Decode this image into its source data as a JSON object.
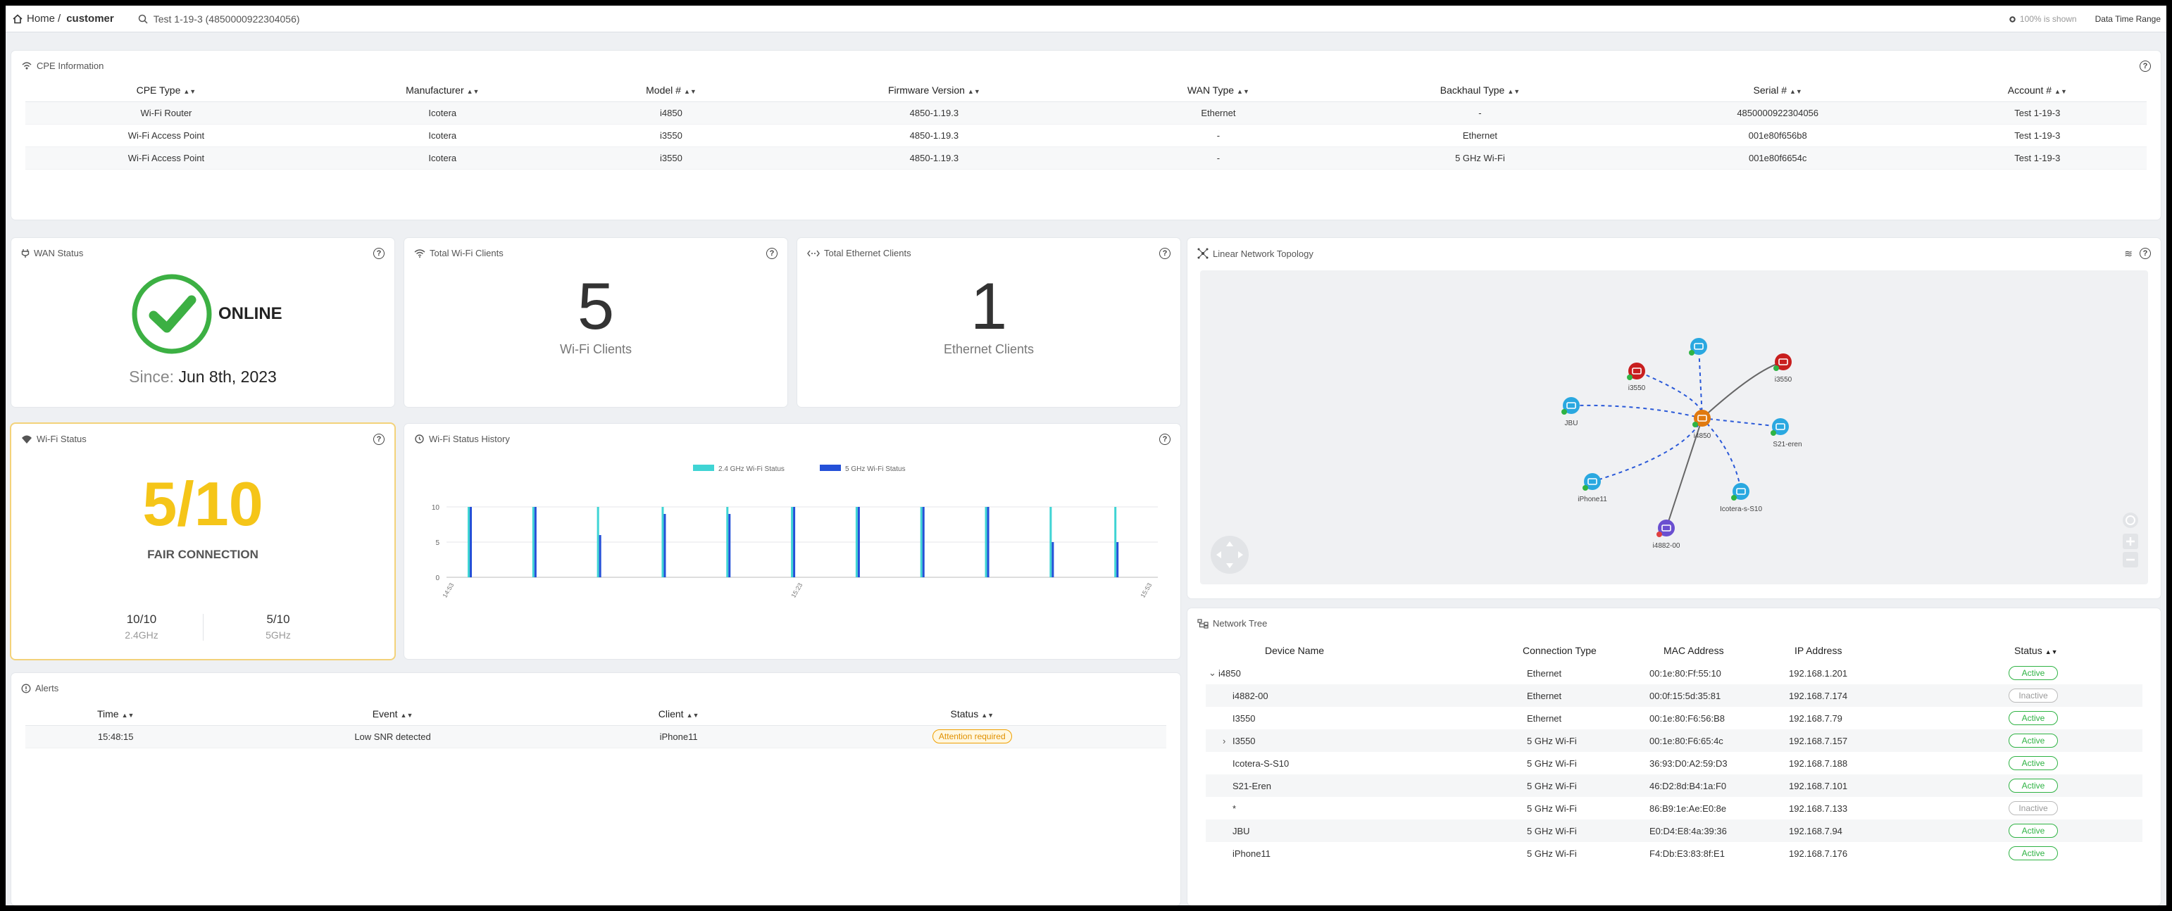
{
  "topbar": {
    "home_label": "Home",
    "separator": "/",
    "current": "customer",
    "search_value": "Test 1-19-3 (4850000922304056)",
    "zoom_text": "100% is shown",
    "datetime_label": "Data Time Range"
  },
  "cpe": {
    "title": "CPE Information",
    "columns": [
      "CPE Type",
      "Manufacturer",
      "Model #",
      "Firmware Version",
      "WAN Type",
      "Backhaul Type",
      "Serial #",
      "Account #"
    ],
    "rows": [
      [
        "Wi-Fi Router",
        "Icotera",
        "i4850",
        "4850-1.19.3",
        "Ethernet",
        "-",
        "4850000922304056",
        "Test 1-19-3"
      ],
      [
        "Wi-Fi Access Point",
        "Icotera",
        "i3550",
        "4850-1.19.3",
        "-",
        "Ethernet",
        "001e80f656b8",
        "Test 1-19-3"
      ],
      [
        "Wi-Fi Access Point",
        "Icotera",
        "i3550",
        "4850-1.19.3",
        "-",
        "5 GHz Wi-Fi",
        "001e80f6654c",
        "Test 1-19-3"
      ]
    ]
  },
  "wan": {
    "title": "WAN Status",
    "status": "ONLINE",
    "since_label": "Since:",
    "since_date": "Jun 8th, 2023",
    "status_color": "#3cb043"
  },
  "wifi_clients": {
    "title": "Total Wi-Fi Clients",
    "count": "5",
    "label": "Wi-Fi Clients"
  },
  "eth_clients": {
    "title": "Total Ethernet Clients",
    "count": "1",
    "label": "Ethernet Clients"
  },
  "wifi_status": {
    "title": "Wi-Fi Status",
    "score": "5/10",
    "rating": "FAIR CONNECTION",
    "score_color": "#f5c518",
    "band1_score": "10/10",
    "band1_label": "2.4GHz",
    "band2_score": "5/10",
    "band2_label": "5GHz"
  },
  "history": {
    "title": "Wi-Fi Status History"
  },
  "chart_data": {
    "type": "bar",
    "series": [
      {
        "name": "2.4 GHz Wi-Fi Status",
        "color": "#3fd4d4",
        "values": [
          10,
          10,
          10,
          10,
          10,
          10,
          10,
          10,
          10,
          10,
          10
        ]
      },
      {
        "name": "5 GHz Wi-Fi Status",
        "color": "#2450d8",
        "values": [
          10,
          10,
          6,
          9,
          9,
          10,
          10,
          10,
          10,
          5,
          5
        ]
      }
    ],
    "yticks": [
      "10",
      "5",
      "0"
    ],
    "ylim": [
      0,
      10
    ],
    "xticks": [
      "14:53",
      "15:23",
      "15:53"
    ],
    "legend": "top-center",
    "grid": true
  },
  "topology": {
    "title": "Linear Network Topology",
    "nodes": [
      {
        "label": "i4850",
        "icon": "router-icon",
        "color": "#e07a10"
      },
      {
        "label": "i3550",
        "icon": "access-point-icon",
        "color": "#c81e1e"
      },
      {
        "label": "",
        "icon": "device-icon",
        "color": "#2aa8e0"
      },
      {
        "label": "i3550",
        "icon": "access-point-icon",
        "color": "#c81e1e"
      },
      {
        "label": "JBU",
        "icon": "device-icon",
        "color": "#2aa8e0"
      },
      {
        "label": "S21-eren",
        "icon": "device-icon",
        "color": "#2aa8e0"
      },
      {
        "label": "iPhone11",
        "icon": "device-icon",
        "color": "#2aa8e0"
      },
      {
        "label": "Icotera-s-S10",
        "icon": "device-icon",
        "color": "#2aa8e0"
      },
      {
        "label": "i4882-00",
        "icon": "device-icon",
        "color": "#6a4fd0"
      }
    ]
  },
  "tree": {
    "title": "Network Tree",
    "columns": [
      "Device Name",
      "Connection Type",
      "MAC Address",
      "IP Address",
      "Status"
    ],
    "rows": [
      {
        "expander": "⌄",
        "name": "i4850",
        "conn": "Ethernet",
        "mac": "00:1e:80:Ff:55:10",
        "ip": "192.168.1.201",
        "status": "Active"
      },
      {
        "expander": "",
        "name": "i4882-00",
        "conn": "Ethernet",
        "mac": "00:0f:15:5d:35:81",
        "ip": "192.168.7.174",
        "status": "Inactive"
      },
      {
        "expander": "",
        "name": "I3550",
        "conn": "Ethernet",
        "mac": "00:1e:80:F6:56:B8",
        "ip": "192.168.7.79",
        "status": "Active"
      },
      {
        "expander": "›",
        "name": "I3550",
        "conn": "5 GHz Wi-Fi",
        "mac": "00:1e:80:F6:65:4c",
        "ip": "192.168.7.157",
        "status": "Active"
      },
      {
        "expander": "",
        "name": "Icotera-S-S10",
        "conn": "5 GHz Wi-Fi",
        "mac": "36:93:D0:A2:59:D3",
        "ip": "192.168.7.188",
        "status": "Active"
      },
      {
        "expander": "",
        "name": "S21-Eren",
        "conn": "5 GHz Wi-Fi",
        "mac": "46:D2:8d:B4:1a:F0",
        "ip": "192.168.7.101",
        "status": "Active"
      },
      {
        "expander": "",
        "name": "*",
        "conn": "5 GHz Wi-Fi",
        "mac": "86:B9:1e:Ae:E0:8e",
        "ip": "192.168.7.133",
        "status": "Inactive"
      },
      {
        "expander": "",
        "name": "JBU",
        "conn": "5 GHz Wi-Fi",
        "mac": "E0:D4:E8:4a:39:36",
        "ip": "192.168.7.94",
        "status": "Active"
      },
      {
        "expander": "",
        "name": "iPhone11",
        "conn": "5 GHz Wi-Fi",
        "mac": "F4:Db:E3:83:8f:E1",
        "ip": "192.168.7.176",
        "status": "Active"
      }
    ]
  },
  "alerts": {
    "title": "Alerts",
    "columns": [
      "Time",
      "Event",
      "Client",
      "Status"
    ],
    "rows": [
      {
        "time": "15:48:15",
        "event": "Low SNR detected",
        "client": "iPhone11",
        "status": "Attention required"
      }
    ]
  }
}
